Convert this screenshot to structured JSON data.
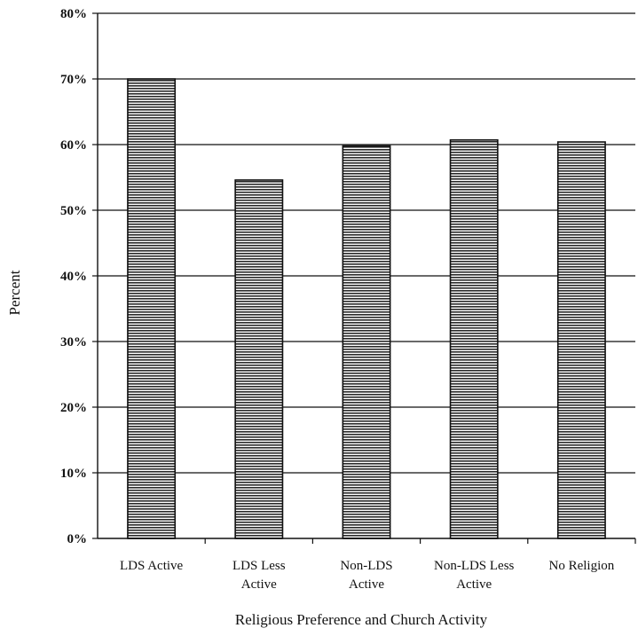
{
  "chart_data": {
    "type": "bar",
    "title": "",
    "xlabel": "Religious Preference and Church Activity",
    "ylabel": "Percent",
    "categories": [
      [
        "LDS Active"
      ],
      [
        "LDS Less",
        "Active"
      ],
      [
        "Non-LDS",
        "Active"
      ],
      [
        "Non-LDS Less",
        "Active"
      ],
      [
        "No Religion"
      ]
    ],
    "values": [
      70,
      54.6,
      59.8,
      60.7,
      60.4
    ],
    "ylim": [
      0,
      80
    ],
    "yticks": [
      "0%",
      "10%",
      "20%",
      "30%",
      "40%",
      "50%",
      "60%",
      "70%",
      "80%"
    ],
    "grid": true,
    "legend": "none"
  }
}
